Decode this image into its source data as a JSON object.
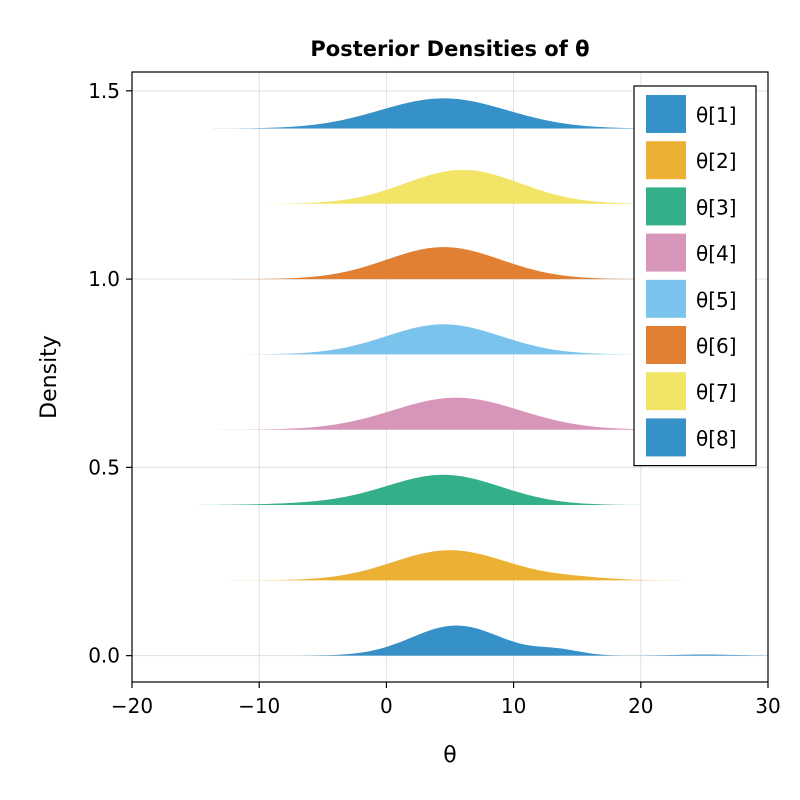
{
  "chart_data": {
    "type": "area",
    "title": "Posterior Densities of θ",
    "xlabel": "θ",
    "ylabel": "Density",
    "xlim": [
      -20,
      30
    ],
    "ylim": [
      -0.07,
      1.55
    ],
    "x_ticks": [
      -20,
      -10,
      0,
      10,
      20,
      30
    ],
    "x_tick_labels": [
      "−20",
      "−10",
      "0",
      "10",
      "20",
      "30"
    ],
    "y_ticks": [
      0.0,
      0.5,
      1.0,
      1.5
    ],
    "y_tick_labels": [
      "0.0",
      "0.5",
      "1.0",
      "1.5"
    ],
    "grid": true,
    "legend_position": "top-right",
    "series": [
      {
        "name": "θ[1]",
        "color": "#3591C8",
        "baseline": 0.0,
        "x_range": [
          -20,
          30
        ],
        "peaks": [
          {
            "mean": 5.5,
            "sd": 3.5,
            "height": 0.08
          },
          {
            "mean": 13.5,
            "sd": 1.8,
            "height": 0.014
          },
          {
            "mean": 25.0,
            "sd": 2.5,
            "height": 0.003
          }
        ]
      },
      {
        "name": "θ[2]",
        "color": "#ECB134",
        "baseline": 0.2,
        "x_range": [
          -13,
          30
        ],
        "peaks": [
          {
            "mean": 5.0,
            "sd": 4.5,
            "height": 0.08
          },
          {
            "mean": 15.0,
            "sd": 2.5,
            "height": 0.006
          }
        ]
      },
      {
        "name": "θ[3]",
        "color": "#33B08A",
        "baseline": 0.4,
        "x_range": [
          -20,
          24
        ],
        "peaks": [
          {
            "mean": 4.5,
            "sd": 4.5,
            "height": 0.08
          },
          {
            "mean": -5.0,
            "sd": 4.0,
            "height": 0.004
          }
        ]
      },
      {
        "name": "θ[4]",
        "color": "#D895BA",
        "baseline": 0.6,
        "x_range": [
          -19,
          24
        ],
        "peaks": [
          {
            "mean": 5.5,
            "sd": 5.0,
            "height": 0.085
          }
        ]
      },
      {
        "name": "θ[5]",
        "color": "#79C3ED",
        "baseline": 0.8,
        "x_range": [
          -20,
          22
        ],
        "peaks": [
          {
            "mean": 4.5,
            "sd": 4.5,
            "height": 0.08
          }
        ]
      },
      {
        "name": "θ[6]",
        "color": "#E17F32",
        "baseline": 1.0,
        "x_range": [
          -17,
          21
        ],
        "peaks": [
          {
            "mean": 4.5,
            "sd": 4.5,
            "height": 0.085
          }
        ]
      },
      {
        "name": "θ[7]",
        "color": "#F2E466",
        "baseline": 1.2,
        "x_range": [
          -10,
          21
        ],
        "peaks": [
          {
            "mean": 6.0,
            "sd": 4.5,
            "height": 0.09
          }
        ]
      },
      {
        "name": "θ[8]",
        "color": "#3591C8",
        "baseline": 1.4,
        "x_range": [
          -17,
          20
        ],
        "peaks": [
          {
            "mean": 4.5,
            "sd": 5.0,
            "height": 0.08
          }
        ]
      }
    ]
  }
}
